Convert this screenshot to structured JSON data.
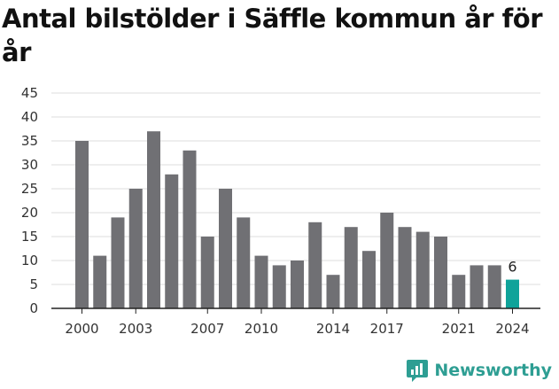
{
  "chart_data": {
    "type": "bar",
    "title": "Antal bilstölder i Säffle kommun år för år",
    "categories": [
      "2000",
      "2001",
      "2002",
      "2003",
      "2004",
      "2005",
      "2006",
      "2007",
      "2008",
      "2009",
      "2010",
      "2011",
      "2012",
      "2013",
      "2014",
      "2015",
      "2016",
      "2017",
      "2018",
      "2019",
      "2020",
      "2021",
      "2022",
      "2023",
      "2024"
    ],
    "values": [
      35,
      11,
      19,
      25,
      37,
      28,
      33,
      15,
      25,
      19,
      11,
      9,
      10,
      18,
      7,
      17,
      12,
      20,
      17,
      16,
      15,
      7,
      9,
      9,
      6
    ],
    "x_tick_labels": [
      "2000",
      "2003",
      "2007",
      "2010",
      "2014",
      "2017",
      "2021",
      "2024"
    ],
    "y_ticks": [
      0,
      5,
      10,
      15,
      20,
      25,
      30,
      35,
      40,
      45
    ],
    "ylim": [
      0,
      45
    ],
    "grid": true,
    "highlight": {
      "category": "2024",
      "label": "6",
      "color": "#0fa39a"
    },
    "bar_color": "#707074"
  },
  "brand": {
    "name": "Newsworthy",
    "icon": "newsworthy-logo-icon",
    "color": "#2e9e93"
  }
}
